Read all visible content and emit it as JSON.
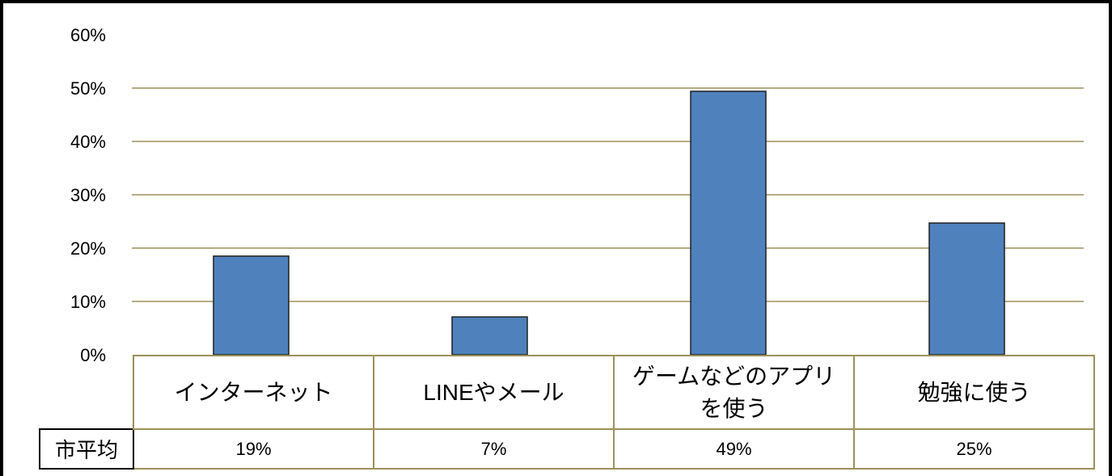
{
  "chart_data": {
    "type": "bar",
    "categories": [
      "インターネット",
      "LINEやメール",
      "ゲームなどのアプリを使う",
      "勉強に使う"
    ],
    "series": [
      {
        "name": "市平均",
        "values": [
          18.5,
          7.1,
          49.4,
          24.7
        ]
      }
    ],
    "ylim": [
      0,
      60
    ],
    "y_ticks": [
      {
        "value": 0,
        "label": "0%"
      },
      {
        "value": 10,
        "label": "10%"
      },
      {
        "value": 20,
        "label": "20%"
      },
      {
        "value": 30,
        "label": "30%"
      },
      {
        "value": 40,
        "label": "40%"
      },
      {
        "value": 50,
        "label": "50%"
      },
      {
        "value": 60,
        "label": "60%"
      }
    ],
    "grid": true,
    "data_table": {
      "values": [
        "19%",
        "7%",
        "49%",
        "25%"
      ]
    }
  },
  "colors": {
    "bar": "#4F81BD",
    "bar_outline": "#1F1F1F",
    "gridline": "#9E9058",
    "table_border": "#9E9058",
    "row_label_border": "#000000",
    "frame": "#000000"
  }
}
